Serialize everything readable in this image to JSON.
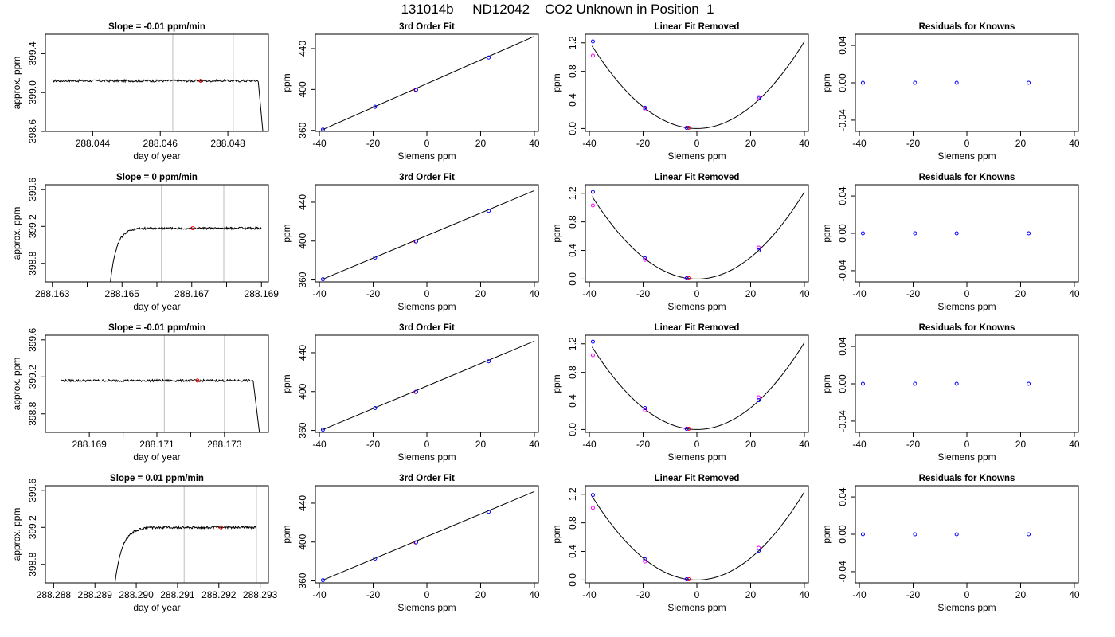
{
  "page": {
    "title": "131014b     ND12042    CO2 Unknown in Position  1"
  },
  "style": {
    "known_point_color": "#0000ff",
    "unknown_point_color": "#ff0000",
    "alt_point_color": "#ff00ff",
    "divider_color": "#bebebe",
    "line_color": "#000000"
  },
  "chart_data": [
    {
      "type": "line",
      "row": 1,
      "kind": "trace",
      "title": "Slope =  -0.01  ppm/min",
      "xlabel": "day of year",
      "ylabel": "approx. ppm",
      "xlim": [
        288.0426,
        288.0492
      ],
      "ylim": [
        398.6,
        399.6
      ],
      "xticks": [
        288.044,
        288.046,
        288.048
      ],
      "xtick_labels": [
        "288.044",
        "288.046",
        "288.048"
      ],
      "yticks": [
        398.6,
        399.0,
        399.4
      ],
      "ytick_labels": [
        "398.6",
        "399.0",
        "399.4"
      ],
      "trace_start": 288.0428,
      "trace_level": 399.12,
      "trace_noise": 0.012,
      "rise": null,
      "drop": {
        "start": 288.0489,
        "end": 288.04905,
        "to": 398.55
      },
      "vlines": [
        288.04637,
        288.04816
      ],
      "marker": {
        "x": 288.0472,
        "y": 399.12
      }
    },
    {
      "type": "line",
      "row": 2,
      "kind": "trace",
      "title": "Slope =  0  ppm/min",
      "xlabel": "day of year",
      "ylabel": "approx. ppm",
      "xlim": [
        288.1628,
        288.1692
      ],
      "ylim": [
        398.6,
        399.65
      ],
      "xticks": [
        288.163,
        288.164,
        288.165,
        288.166,
        288.167,
        288.168,
        288.169
      ],
      "xtick_labels": [
        "288.163",
        "",
        "288.165",
        "",
        "288.167",
        "",
        "288.169"
      ],
      "yticks": [
        398.8,
        399.2,
        399.6
      ],
      "ytick_labels": [
        "398.8",
        "399.2",
        "399.6"
      ],
      "trace_end": 288.169,
      "trace_level": 399.18,
      "trace_noise": 0.012,
      "rise": {
        "start": 288.16465,
        "from": 398.55,
        "tau": 0.00018
      },
      "drop": null,
      "vlines": [
        288.16613,
        288.16792
      ],
      "marker": {
        "x": 288.16703,
        "y": 399.18
      }
    },
    {
      "type": "line",
      "row": 3,
      "kind": "trace",
      "title": "Slope =  -0.01  ppm/min",
      "xlabel": "day of year",
      "ylabel": "approx. ppm",
      "xlim": [
        288.1677,
        288.1743
      ],
      "ylim": [
        398.6,
        399.65
      ],
      "xticks": [
        288.169,
        288.17,
        288.171,
        288.172,
        288.173
      ],
      "xtick_labels": [
        "288.169",
        "",
        "288.171",
        "",
        "288.173"
      ],
      "yticks": [
        398.8,
        399.2,
        399.6
      ],
      "ytick_labels": [
        "398.8",
        "399.2",
        "399.6"
      ],
      "trace_start": 288.16815,
      "trace_level": 399.16,
      "trace_noise": 0.012,
      "rise": null,
      "drop": {
        "start": 288.17385,
        "end": 288.17405,
        "to": 398.55
      },
      "vlines": [
        288.17122,
        288.173
      ],
      "marker": {
        "x": 288.1722,
        "y": 399.16
      }
    },
    {
      "type": "line",
      "row": 4,
      "kind": "trace",
      "title": "Slope =  0.01  ppm/min",
      "xlabel": "day of year",
      "ylabel": "approx. ppm",
      "xlim": [
        288.2878,
        288.2932
      ],
      "ylim": [
        398.6,
        399.65
      ],
      "xticks": [
        288.288,
        288.289,
        288.29,
        288.291,
        288.292,
        288.293
      ],
      "xtick_labels": [
        "288.288",
        "288.289",
        "288.290",
        "288.291",
        "288.292",
        "288.293"
      ],
      "yticks": [
        398.8,
        399.2,
        399.6
      ],
      "ytick_labels": [
        "398.8",
        "399.2",
        "399.6"
      ],
      "trace_end": 288.2929,
      "trace_level": 399.2,
      "trace_noise": 0.012,
      "rise": {
        "start": 288.28947,
        "from": 398.55,
        "tau": 0.00018
      },
      "drop": null,
      "vlines": [
        288.29116,
        288.29291
      ],
      "marker": {
        "x": 288.29205,
        "y": 399.2
      }
    },
    {
      "type": "scatter",
      "row": 1,
      "kind": "fit3",
      "title": "3rd Order Fit",
      "xlabel": "Siemens ppm",
      "ylabel": "ppm",
      "xlim": [
        -41.5,
        41.5
      ],
      "ylim": [
        359,
        454
      ],
      "xticks": [
        -40,
        -20,
        0,
        20,
        40
      ],
      "xtick_labels": [
        "-40",
        "-20",
        "0",
        "20",
        "40"
      ],
      "yticks": [
        360,
        400,
        440
      ],
      "ytick_labels": [
        "360",
        "400",
        "440"
      ],
      "fit_line": {
        "x0": -39,
        "y0": 360.5,
        "x1": 40,
        "y1": 452.0
      },
      "known_points": [
        [
          -38.7,
          360.8
        ],
        [
          -19.3,
          383.0
        ],
        [
          -4.0,
          399.7
        ],
        [
          23.0,
          431.2
        ]
      ],
      "unknown_points": [
        [
          -4.2,
          399.6
        ]
      ]
    },
    {
      "type": "scatter",
      "row": 2,
      "kind": "fit3",
      "title": "3rd Order Fit",
      "xlabel": "Siemens ppm",
      "ylabel": "ppm",
      "xlim": [
        -41.5,
        41.5
      ],
      "ylim": [
        358,
        458
      ],
      "xticks": [
        -40,
        -20,
        0,
        20,
        40
      ],
      "xtick_labels": [
        "-40",
        "-20",
        "0",
        "20",
        "40"
      ],
      "yticks": [
        360,
        400,
        440
      ],
      "ytick_labels": [
        "360",
        "400",
        "440"
      ],
      "fit_line": {
        "x0": -39,
        "y0": 360.5,
        "x1": 40,
        "y1": 452.0
      },
      "known_points": [
        [
          -38.7,
          360.8
        ],
        [
          -19.3,
          383.0
        ],
        [
          -4.0,
          399.7
        ],
        [
          23.0,
          431.2
        ]
      ],
      "unknown_points": [
        [
          -4.2,
          399.6
        ]
      ]
    },
    {
      "type": "scatter",
      "row": 3,
      "kind": "fit3",
      "title": "3rd Order Fit",
      "xlabel": "Siemens ppm",
      "ylabel": "ppm",
      "xlim": [
        -41.5,
        41.5
      ],
      "ylim": [
        358,
        458
      ],
      "xticks": [
        -40,
        -20,
        0,
        20,
        40
      ],
      "xtick_labels": [
        "-40",
        "-20",
        "0",
        "20",
        "40"
      ],
      "yticks": [
        360,
        400,
        440
      ],
      "ytick_labels": [
        "360",
        "400",
        "440"
      ],
      "fit_line": {
        "x0": -39,
        "y0": 360.5,
        "x1": 40,
        "y1": 452.0
      },
      "known_points": [
        [
          -38.7,
          360.8
        ],
        [
          -19.3,
          383.0
        ],
        [
          -4.0,
          399.7
        ],
        [
          23.0,
          431.2
        ]
      ],
      "unknown_points": [
        [
          -4.2,
          399.6
        ]
      ]
    },
    {
      "type": "scatter",
      "row": 4,
      "kind": "fit3",
      "title": "3rd Order Fit",
      "xlabel": "Siemens ppm",
      "ylabel": "ppm",
      "xlim": [
        -41.5,
        41.5
      ],
      "ylim": [
        358,
        458
      ],
      "xticks": [
        -40,
        -20,
        0,
        20,
        40
      ],
      "xtick_labels": [
        "-40",
        "-20",
        "0",
        "20",
        "40"
      ],
      "yticks": [
        360,
        400,
        440
      ],
      "ytick_labels": [
        "360",
        "400",
        "440"
      ],
      "fit_line": {
        "x0": -39,
        "y0": 360.5,
        "x1": 40,
        "y1": 452.0
      },
      "known_points": [
        [
          -38.7,
          360.8
        ],
        [
          -19.3,
          383.0
        ],
        [
          -4.0,
          399.7
        ],
        [
          23.0,
          431.2
        ]
      ],
      "unknown_points": [
        [
          -4.2,
          399.6
        ]
      ]
    },
    {
      "type": "scatter",
      "row": 1,
      "kind": "linres",
      "title": "Linear Fit Removed",
      "xlabel": "Siemens ppm",
      "ylabel": "ppm",
      "xlim": [
        -41.5,
        41.5
      ],
      "ylim": [
        -0.04,
        1.32
      ],
      "xticks": [
        -40,
        -20,
        0,
        20,
        40
      ],
      "xtick_labels": [
        "-40",
        "-20",
        "0",
        "20",
        "40"
      ],
      "yticks": [
        0.0,
        0.4,
        0.8,
        1.2
      ],
      "ytick_labels": [
        "0.0",
        "0.4",
        "0.8",
        "1.2"
      ],
      "parabola": {
        "vertex_x": 0,
        "coef": 0.00076,
        "x0": -39,
        "x1": 40
      },
      "known_points": [
        [
          -38.7,
          1.22
        ],
        [
          -19.3,
          0.29
        ],
        [
          -3.8,
          0.01
        ],
        [
          23.0,
          0.42
        ]
      ],
      "alt_points": [
        [
          -38.7,
          1.02
        ],
        [
          -19.3,
          0.27
        ],
        [
          -3.8,
          0.01
        ],
        [
          23.0,
          0.44
        ]
      ],
      "unknown_points": [
        [
          -3.0,
          0.01
        ]
      ]
    },
    {
      "type": "scatter",
      "row": 2,
      "kind": "linres",
      "title": "Linear Fit Removed",
      "xlabel": "Siemens ppm",
      "ylabel": "ppm",
      "xlim": [
        -41.5,
        41.5
      ],
      "ylim": [
        -0.04,
        1.32
      ],
      "xticks": [
        -40,
        -20,
        0,
        20,
        40
      ],
      "xtick_labels": [
        "-40",
        "-20",
        "0",
        "20",
        "40"
      ],
      "yticks": [
        0.0,
        0.4,
        0.8,
        1.2
      ],
      "ytick_labels": [
        "0.0",
        "0.4",
        "0.8",
        "1.2"
      ],
      "parabola": {
        "vertex_x": 0,
        "coef": 0.00076,
        "x0": -39,
        "x1": 40
      },
      "known_points": [
        [
          -38.7,
          1.22
        ],
        [
          -19.3,
          0.29
        ],
        [
          -3.8,
          0.01
        ],
        [
          23.0,
          0.4
        ]
      ],
      "alt_points": [
        [
          -38.7,
          1.03
        ],
        [
          -19.3,
          0.27
        ],
        [
          -3.8,
          0.01
        ],
        [
          23.0,
          0.44
        ]
      ],
      "unknown_points": [
        [
          -3.0,
          0.01
        ]
      ]
    },
    {
      "type": "scatter",
      "row": 3,
      "kind": "linres",
      "title": "Linear Fit Removed",
      "xlabel": "Siemens ppm",
      "ylabel": "ppm",
      "xlim": [
        -41.5,
        41.5
      ],
      "ylim": [
        -0.04,
        1.32
      ],
      "xticks": [
        -40,
        -20,
        0,
        20,
        40
      ],
      "xtick_labels": [
        "-40",
        "-20",
        "0",
        "20",
        "40"
      ],
      "yticks": [
        0.0,
        0.4,
        0.8,
        1.2
      ],
      "ytick_labels": [
        "0.0",
        "0.4",
        "0.8",
        "1.2"
      ],
      "parabola": {
        "vertex_x": 0,
        "coef": 0.00076,
        "x0": -39,
        "x1": 40
      },
      "known_points": [
        [
          -38.7,
          1.23
        ],
        [
          -19.3,
          0.3
        ],
        [
          -3.8,
          0.01
        ],
        [
          23.0,
          0.41
        ]
      ],
      "alt_points": [
        [
          -38.7,
          1.04
        ],
        [
          -19.3,
          0.27
        ],
        [
          -3.8,
          0.01
        ],
        [
          23.0,
          0.45
        ]
      ],
      "unknown_points": [
        [
          -3.0,
          0.01
        ]
      ]
    },
    {
      "type": "scatter",
      "row": 4,
      "kind": "linres",
      "title": "Linear Fit Removed",
      "xlabel": "Siemens ppm",
      "ylabel": "ppm",
      "xlim": [
        -41.5,
        41.5
      ],
      "ylim": [
        -0.04,
        1.32
      ],
      "xticks": [
        -40,
        -20,
        0,
        20,
        40
      ],
      "xtick_labels": [
        "-40",
        "-20",
        "0",
        "20",
        "40"
      ],
      "yticks": [
        0.0,
        0.4,
        0.8,
        1.2
      ],
      "ytick_labels": [
        "0.0",
        "0.4",
        "0.8",
        "1.2"
      ],
      "parabola": {
        "vertex_x": 0,
        "coef": 0.00077,
        "x0": -39,
        "x1": 40
      },
      "known_points": [
        [
          -38.7,
          1.19
        ],
        [
          -19.3,
          0.29
        ],
        [
          -3.8,
          0.01
        ],
        [
          23.0,
          0.41
        ]
      ],
      "alt_points": [
        [
          -38.7,
          1.01
        ],
        [
          -19.3,
          0.26
        ],
        [
          -3.8,
          0.01
        ],
        [
          23.0,
          0.45
        ]
      ],
      "unknown_points": [
        [
          -3.0,
          0.01
        ]
      ]
    },
    {
      "type": "scatter",
      "row": 1,
      "kind": "resid",
      "title": "Residuals for Knowns",
      "xlabel": "Siemens ppm",
      "ylabel": "ppm",
      "xlim": [
        -41.5,
        41.5
      ],
      "ylim": [
        -0.052,
        0.052
      ],
      "xticks": [
        -40,
        -20,
        0,
        20,
        40
      ],
      "xtick_labels": [
        "-40",
        "-20",
        "0",
        "20",
        "40"
      ],
      "yticks": [
        -0.04,
        0.0,
        0.04
      ],
      "ytick_labels": [
        "-0.04",
        "0.00",
        "0.04"
      ],
      "known_points": [
        [
          -38.7,
          0
        ],
        [
          -19.3,
          0
        ],
        [
          -3.8,
          0
        ],
        [
          23.0,
          0
        ]
      ]
    },
    {
      "type": "scatter",
      "row": 2,
      "kind": "resid",
      "title": "Residuals for Knowns",
      "xlabel": "Siemens ppm",
      "ylabel": "ppm",
      "xlim": [
        -41.5,
        41.5
      ],
      "ylim": [
        -0.052,
        0.052
      ],
      "xticks": [
        -40,
        -20,
        0,
        20,
        40
      ],
      "xtick_labels": [
        "-40",
        "-20",
        "0",
        "20",
        "40"
      ],
      "yticks": [
        -0.04,
        0.0,
        0.04
      ],
      "ytick_labels": [
        "-0.04",
        "0.00",
        "0.04"
      ],
      "known_points": [
        [
          -38.7,
          0
        ],
        [
          -19.3,
          0
        ],
        [
          -3.8,
          0
        ],
        [
          23.0,
          0
        ]
      ]
    },
    {
      "type": "scatter",
      "row": 3,
      "kind": "resid",
      "title": "Residuals for Knowns",
      "xlabel": "Siemens ppm",
      "ylabel": "ppm",
      "xlim": [
        -41.5,
        41.5
      ],
      "ylim": [
        -0.052,
        0.052
      ],
      "xticks": [
        -40,
        -20,
        0,
        20,
        40
      ],
      "xtick_labels": [
        "-40",
        "-20",
        "0",
        "20",
        "40"
      ],
      "yticks": [
        -0.04,
        0.0,
        0.04
      ],
      "ytick_labels": [
        "-0.04",
        "0.00",
        "0.04"
      ],
      "known_points": [
        [
          -38.7,
          0
        ],
        [
          -19.3,
          0
        ],
        [
          -3.8,
          0
        ],
        [
          23.0,
          0
        ]
      ]
    },
    {
      "type": "scatter",
      "row": 4,
      "kind": "resid",
      "title": "Residuals for Knowns",
      "xlabel": "Siemens ppm",
      "ylabel": "ppm",
      "xlim": [
        -41.5,
        41.5
      ],
      "ylim": [
        -0.052,
        0.052
      ],
      "xticks": [
        -40,
        -20,
        0,
        20,
        40
      ],
      "xtick_labels": [
        "-40",
        "-20",
        "0",
        "20",
        "40"
      ],
      "yticks": [
        -0.04,
        0.0,
        0.04
      ],
      "ytick_labels": [
        "-0.04",
        "0.00",
        "0.04"
      ],
      "known_points": [
        [
          -38.7,
          0
        ],
        [
          -19.3,
          0
        ],
        [
          -3.8,
          0
        ],
        [
          23.0,
          0
        ]
      ]
    }
  ]
}
